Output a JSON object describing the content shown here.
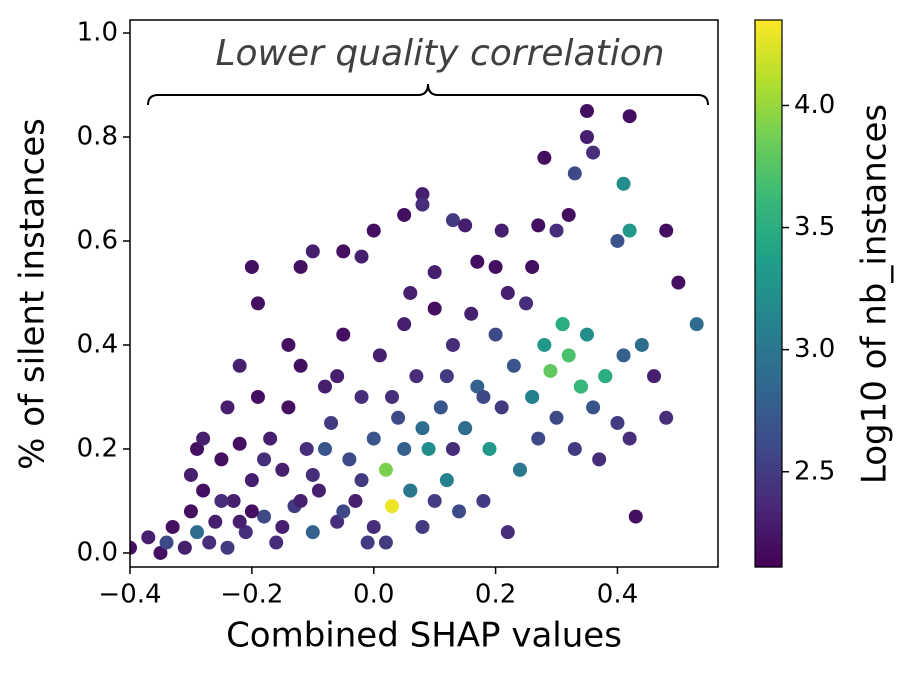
{
  "chart_data": {
    "type": "scatter",
    "xlabel": "Combined SHAP values",
    "ylabel": "% of silent instances",
    "colorbar_label": "Log10 of nb_instances",
    "annotation": "Lower quality correlation",
    "colormap": "viridis",
    "clim": [
      2.11,
      4.35
    ],
    "cticks": [
      2.5,
      {
        "value": 3,
        "label": "3.0"
      },
      3.5,
      {
        "value": 4,
        "label": "4.0"
      }
    ],
    "xlim": [
      -0.4,
      0.565
    ],
    "ylim": [
      -0.027,
      1.025
    ],
    "xticks": [
      {
        "value": -0.4,
        "label": "−0.4"
      },
      {
        "value": -0.2,
        "label": "−0.2"
      },
      {
        "value": 0,
        "label": "0.0"
      },
      0.2,
      0.4
    ],
    "yticks": [
      {
        "value": 0,
        "label": "0.0"
      },
      0.2,
      0.4,
      0.6,
      0.8,
      {
        "value": 1,
        "label": "1.0"
      }
    ],
    "series": [
      {
        "x": [
          -0.4,
          -0.37,
          -0.35,
          -0.34,
          -0.33,
          -0.31,
          -0.3,
          -0.29,
          -0.28,
          -0.27,
          -0.26,
          -0.25,
          -0.24,
          -0.23,
          -0.22,
          -0.21,
          -0.2,
          -0.19,
          -0.18,
          -0.17,
          -0.16,
          -0.15,
          -0.14,
          -0.13,
          -0.12,
          -0.11,
          -0.1,
          -0.09,
          -0.08,
          -0.07,
          -0.06,
          -0.05,
          -0.04,
          -0.03,
          -0.02,
          -0.01,
          0,
          0.01,
          0.04,
          0.05,
          0.06,
          0.07,
          0.08,
          0.1,
          0.11,
          0.13,
          0.14,
          0.15,
          0.16,
          0.17,
          0.18,
          0.2,
          0.21,
          0.22,
          0.23,
          0.24,
          0.25,
          0.26,
          0.27,
          0.28,
          0.3,
          0.31,
          0.33,
          0.34,
          0.35,
          0.36,
          0.37,
          0.38,
          0.4,
          0.41,
          0.42,
          0.44,
          0.46,
          0.48,
          -0.3,
          -0.25,
          -0.2,
          -0.15,
          -0.1,
          -0.05,
          0,
          0.05,
          0.1,
          -0.12,
          -0.08,
          -0.02,
          0.03,
          0.08,
          -0.18,
          -0.22,
          0.13,
          0.18,
          -0.06,
          0.02,
          -0.14,
          -0.24,
          -0.19,
          -0.29,
          0.12,
          0.22,
          0.17,
          -0.22,
          -0.28,
          0.06,
          0.35,
          0.42,
          0.35,
          0.36,
          0.28,
          0.33,
          0.08,
          0.08,
          0.32,
          0.13,
          0.15,
          0.05,
          0.21,
          0.27,
          0.3,
          0.4,
          0.48,
          -0.05,
          -0.1,
          -0.12,
          -0.2,
          0.5,
          0.43,
          0.0,
          -0.02,
          0.1,
          0.2,
          0.26,
          0.09,
          0.12,
          0.15,
          0.19,
          0.24,
          0.26,
          0.06,
          0.31,
          0.41,
          0.42,
          0.53,
          0.34,
          0.38,
          0.29,
          0.32,
          0.02,
          0.03
        ],
        "values": [
          0.01,
          0.03,
          0.0,
          0.02,
          0.05,
          0.01,
          0.08,
          0.04,
          0.12,
          0.02,
          0.06,
          0.18,
          0.01,
          0.1,
          0.21,
          0.04,
          0.14,
          0.3,
          0.07,
          0.22,
          0.02,
          0.16,
          0.28,
          0.09,
          0.36,
          0.2,
          0.04,
          0.12,
          0.32,
          0.25,
          0.06,
          0.42,
          0.18,
          0.1,
          0.3,
          0.02,
          0.22,
          0.38,
          0.26,
          0.44,
          0.12,
          0.34,
          0.05,
          0.47,
          0.28,
          0.4,
          0.08,
          0.24,
          0.46,
          0.32,
          0.1,
          0.42,
          0.28,
          0.04,
          0.36,
          0.16,
          0.48,
          0.3,
          0.22,
          0.4,
          0.26,
          0.44,
          0.2,
          0.32,
          0.42,
          0.28,
          0.18,
          0.34,
          0.25,
          0.38,
          0.22,
          0.4,
          0.34,
          0.26,
          0.15,
          0.1,
          0.08,
          0.05,
          0.15,
          0.08,
          0.05,
          0.2,
          0.1,
          0.1,
          0.2,
          0.14,
          0.3,
          0.24,
          0.18,
          0.06,
          0.2,
          0.3,
          0.34,
          0.02,
          0.4,
          0.28,
          0.48,
          0.2,
          0.34,
          0.5,
          0.56,
          0.36,
          0.22,
          0.5,
          0.85,
          0.84,
          0.8,
          0.77,
          0.76,
          0.73,
          0.69,
          0.67,
          0.65,
          0.64,
          0.63,
          0.65,
          0.62,
          0.63,
          0.62,
          0.6,
          0.62,
          0.58,
          0.58,
          0.55,
          0.55,
          0.52,
          0.07,
          0.62,
          0.57,
          0.54,
          0.55,
          0.55,
          0.2,
          0.14,
          0.24,
          0.2,
          0.16,
          0.3,
          0.12,
          0.44,
          0.71,
          0.62,
          0.44,
          0.32,
          0.34,
          0.35,
          0.38,
          0.16,
          0.09
        ],
        "color_values": [
          2.2,
          2.3,
          2.2,
          2.6,
          2.2,
          2.3,
          2.2,
          2.9,
          2.2,
          2.4,
          2.3,
          2.2,
          2.5,
          2.3,
          2.2,
          2.4,
          2.3,
          2.2,
          2.6,
          2.3,
          2.4,
          2.3,
          2.2,
          2.5,
          2.2,
          2.4,
          2.8,
          2.3,
          2.3,
          2.5,
          2.4,
          2.2,
          2.6,
          2.3,
          2.4,
          2.5,
          2.7,
          2.3,
          2.6,
          2.3,
          3.0,
          2.4,
          2.5,
          2.2,
          2.7,
          2.4,
          2.6,
          2.9,
          2.3,
          2.8,
          2.5,
          2.6,
          2.5,
          2.4,
          2.7,
          2.9,
          2.4,
          3.1,
          2.6,
          3.3,
          2.6,
          3.4,
          2.5,
          2.9,
          3.2,
          2.7,
          2.4,
          3.0,
          2.5,
          2.8,
          2.4,
          2.9,
          2.3,
          2.4,
          2.3,
          2.4,
          2.2,
          2.3,
          2.4,
          2.6,
          2.4,
          2.8,
          2.5,
          2.3,
          2.7,
          2.5,
          2.4,
          2.9,
          2.4,
          2.3,
          2.4,
          2.6,
          2.3,
          2.5,
          2.2,
          2.3,
          2.2,
          2.2,
          2.5,
          2.3,
          2.2,
          2.3,
          2.3,
          2.3,
          2.2,
          2.2,
          2.3,
          2.4,
          2.2,
          2.6,
          2.3,
          2.4,
          2.2,
          2.5,
          2.3,
          2.2,
          2.3,
          2.2,
          2.4,
          2.7,
          2.2,
          2.2,
          2.3,
          2.2,
          2.2,
          2.2,
          2.2,
          2.2,
          2.3,
          2.3,
          2.2,
          2.2,
          3.2,
          3.1,
          2.9,
          3.3,
          3.0,
          3.1,
          3.0,
          3.5,
          3.2,
          3.3,
          2.9,
          3.6,
          3.5,
          3.8,
          3.7,
          3.9,
          4.3
        ]
      }
    ]
  }
}
